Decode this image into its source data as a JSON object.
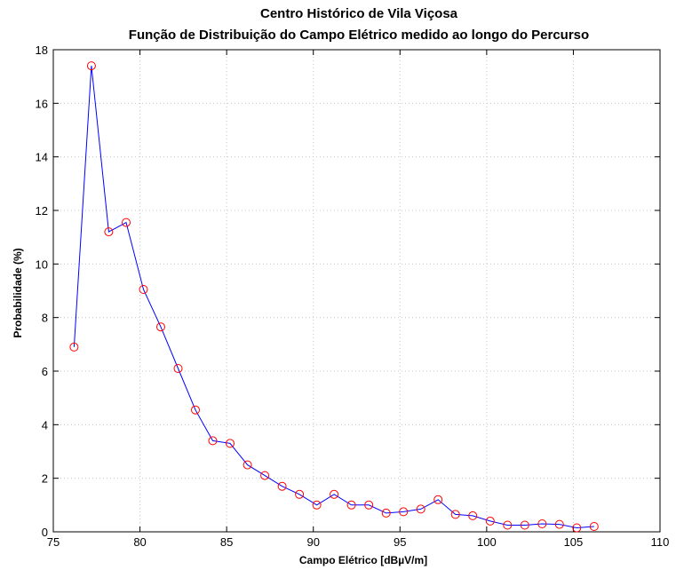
{
  "chart_data": {
    "type": "line",
    "title": "Centro Histórico de Vila Viçosa",
    "subtitle": "Função de Distribuição do Campo Elétrico medido ao longo do Percurso",
    "xlabel": "Campo Elétrico [dBµV/m]",
    "ylabel": "Probabilidade (%)",
    "xlim": [
      75,
      110
    ],
    "ylim": [
      0,
      18
    ],
    "xticks": [
      75,
      80,
      85,
      90,
      95,
      100,
      105,
      110
    ],
    "yticks": [
      0,
      2,
      4,
      6,
      8,
      10,
      12,
      14,
      16,
      18
    ],
    "grid": true,
    "series": [
      {
        "x": [
          76.2,
          77.2,
          78.2,
          79.2,
          80.2,
          81.2,
          82.2,
          83.2,
          84.2,
          85.2,
          86.2,
          87.2,
          88.2,
          89.2,
          90.2,
          91.2,
          92.2,
          93.2,
          94.2,
          95.2,
          96.2,
          97.2,
          98.2,
          99.2,
          100.2,
          101.2,
          102.2,
          103.2,
          104.2,
          105.2,
          106.2
        ],
        "y": [
          6.9,
          17.4,
          11.2,
          11.55,
          9.05,
          7.65,
          6.1,
          4.55,
          3.4,
          3.3,
          2.5,
          2.1,
          1.7,
          1.4,
          1.0,
          1.4,
          1.0,
          1.0,
          0.7,
          0.75,
          0.85,
          1.2,
          0.65,
          0.6,
          0.4,
          0.25,
          0.25,
          0.3,
          0.28,
          0.15,
          0.2
        ],
        "line_color": "#0000ff",
        "marker_color": "#ff0000",
        "marker": "circle"
      }
    ]
  }
}
